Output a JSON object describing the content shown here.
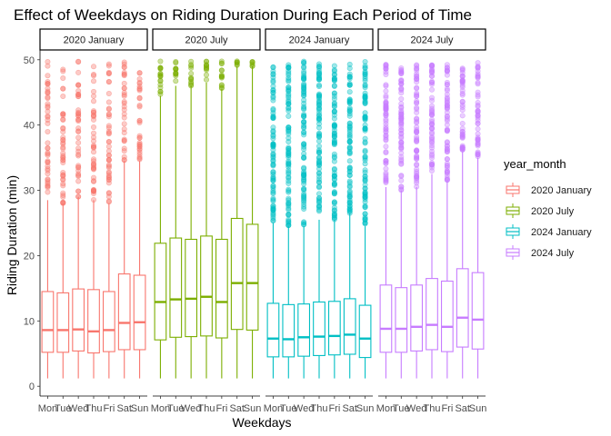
{
  "chart_data": {
    "type": "boxplot",
    "title": "Effect of Weekdays on Riding Duration During Each Period of Time",
    "xlabel": "Weekdays",
    "ylabel": "Riding Duration (min)",
    "ylim": [
      -1.5,
      51.5
    ],
    "yticks": [
      0,
      10,
      20,
      30,
      40,
      50
    ],
    "categories": [
      "Mon",
      "Tue",
      "Wed",
      "Thu",
      "Fri",
      "Sat",
      "Sun"
    ],
    "legend": {
      "title": "year_month",
      "position": "right",
      "items": [
        {
          "label": "2020 January",
          "color": "#F8766D"
        },
        {
          "label": "2020 July",
          "color": "#7CAE00"
        },
        {
          "label": "2024 January",
          "color": "#00BFC4"
        },
        {
          "label": "2024 July",
          "color": "#C77CFF"
        }
      ]
    },
    "panels": [
      {
        "name": "2020 January",
        "color": "#F8766D",
        "boxes": [
          {
            "day": "Mon",
            "min": 1.2,
            "q1": 5.2,
            "median": 8.6,
            "q3": 14.5,
            "whisker_high": 28.5,
            "outlier_start": 28.5
          },
          {
            "day": "Tue",
            "min": 1.2,
            "q1": 5.2,
            "median": 8.6,
            "q3": 14.3,
            "whisker_high": 28.0,
            "outlier_start": 28.0
          },
          {
            "day": "Wed",
            "min": 1.2,
            "q1": 5.4,
            "median": 8.7,
            "q3": 14.9,
            "whisker_high": 29.0,
            "outlier_start": 29.0
          },
          {
            "day": "Thu",
            "min": 1.2,
            "q1": 5.1,
            "median": 8.4,
            "q3": 14.8,
            "whisker_high": 28.5,
            "outlier_start": 28.5
          },
          {
            "day": "Fri",
            "min": 1.2,
            "q1": 5.3,
            "median": 8.6,
            "q3": 14.5,
            "whisker_high": 28.0,
            "outlier_start": 28.0
          },
          {
            "day": "Sat",
            "min": 1.2,
            "q1": 5.6,
            "median": 9.7,
            "q3": 17.2,
            "whisker_high": 34.5,
            "outlier_start": 34.5
          },
          {
            "day": "Sun",
            "min": 1.2,
            "q1": 5.6,
            "median": 9.8,
            "q3": 17.0,
            "whisker_high": 34.5,
            "outlier_start": 34.5
          }
        ]
      },
      {
        "name": "2020 July",
        "color": "#7CAE00",
        "boxes": [
          {
            "day": "Mon",
            "min": 1.2,
            "q1": 7.1,
            "median": 12.9,
            "q3": 21.9,
            "whisker_high": 44.5,
            "outlier_start": 44.5
          },
          {
            "day": "Tue",
            "min": 1.2,
            "q1": 7.5,
            "median": 13.3,
            "q3": 22.7,
            "whisker_high": 46.0,
            "outlier_start": 46.0
          },
          {
            "day": "Wed",
            "min": 1.2,
            "q1": 7.6,
            "median": 13.4,
            "q3": 22.5,
            "whisker_high": 46.0,
            "outlier_start": 46.0
          },
          {
            "day": "Thu",
            "min": 1.2,
            "q1": 7.7,
            "median": 13.7,
            "q3": 23.0,
            "whisker_high": 46.5,
            "outlier_start": 46.5
          },
          {
            "day": "Fri",
            "min": 1.2,
            "q1": 7.4,
            "median": 12.9,
            "q3": 22.5,
            "whisker_high": 45.5,
            "outlier_start": 45.5
          },
          {
            "day": "Sat",
            "min": 1.2,
            "q1": 8.7,
            "median": 15.8,
            "q3": 25.7,
            "whisker_high": 49.0,
            "outlier_start": 49.0
          },
          {
            "day": "Sun",
            "min": 1.2,
            "q1": 8.6,
            "median": 15.8,
            "q3": 24.8,
            "whisker_high": 49.0,
            "outlier_start": 49.0
          }
        ]
      },
      {
        "name": "2024 January",
        "color": "#00BFC4",
        "boxes": [
          {
            "day": "Mon",
            "min": 1.2,
            "q1": 4.5,
            "median": 7.3,
            "q3": 12.7,
            "whisker_high": 25.0,
            "outlier_start": 25.0
          },
          {
            "day": "Tue",
            "min": 1.2,
            "q1": 4.5,
            "median": 7.2,
            "q3": 12.5,
            "whisker_high": 24.5,
            "outlier_start": 24.5
          },
          {
            "day": "Wed",
            "min": 1.2,
            "q1": 4.6,
            "median": 7.5,
            "q3": 12.6,
            "whisker_high": 24.5,
            "outlier_start": 24.5
          },
          {
            "day": "Thu",
            "min": 1.2,
            "q1": 4.7,
            "median": 7.6,
            "q3": 12.9,
            "whisker_high": 25.5,
            "outlier_start": 25.5
          },
          {
            "day": "Fri",
            "min": 1.2,
            "q1": 4.8,
            "median": 7.7,
            "q3": 13.0,
            "whisker_high": 25.5,
            "outlier_start": 25.5
          },
          {
            "day": "Sat",
            "min": 1.2,
            "q1": 4.9,
            "median": 7.9,
            "q3": 13.4,
            "whisker_high": 26.5,
            "outlier_start": 26.5
          },
          {
            "day": "Sun",
            "min": 1.2,
            "q1": 4.4,
            "median": 7.3,
            "q3": 12.4,
            "whisker_high": 24.5,
            "outlier_start": 24.5
          }
        ]
      },
      {
        "name": "2024 July",
        "color": "#C77CFF",
        "boxes": [
          {
            "day": "Mon",
            "min": 1.2,
            "q1": 5.2,
            "median": 8.8,
            "q3": 15.5,
            "whisker_high": 30.5,
            "outlier_start": 30.5
          },
          {
            "day": "Tue",
            "min": 1.2,
            "q1": 5.2,
            "median": 8.8,
            "q3": 15.1,
            "whisker_high": 30.0,
            "outlier_start": 30.0
          },
          {
            "day": "Wed",
            "min": 1.2,
            "q1": 5.4,
            "median": 9.1,
            "q3": 15.5,
            "whisker_high": 30.5,
            "outlier_start": 30.5
          },
          {
            "day": "Thu",
            "min": 1.2,
            "q1": 5.6,
            "median": 9.4,
            "q3": 16.5,
            "whisker_high": 32.5,
            "outlier_start": 32.5
          },
          {
            "day": "Fri",
            "min": 1.2,
            "q1": 5.3,
            "median": 9.1,
            "q3": 16.1,
            "whisker_high": 31.5,
            "outlier_start": 31.5
          },
          {
            "day": "Sat",
            "min": 1.2,
            "q1": 6.0,
            "median": 10.5,
            "q3": 18.0,
            "whisker_high": 36.0,
            "outlier_start": 36.0
          },
          {
            "day": "Sun",
            "min": 1.2,
            "q1": 5.7,
            "median": 10.2,
            "q3": 17.4,
            "whisker_high": 35.0,
            "outlier_start": 35.0
          }
        ]
      }
    ],
    "outlier_max": 49.8,
    "grid": false
  }
}
